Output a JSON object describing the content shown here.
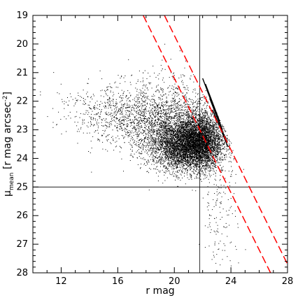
{
  "chart_data": {
    "type": "scatter",
    "title": "",
    "xlabel": "r mag",
    "ylabel": "μ",
    "ylabel_sub": "mean",
    "ylabel_rest": " [r mag arcsec",
    "ylabel_sup": "-2",
    "ylabel_close": "]",
    "xlim": [
      10,
      28
    ],
    "ylim": [
      19,
      28
    ],
    "y_inverted": true,
    "xticks": [
      12,
      16,
      20,
      24,
      28
    ],
    "yticks": [
      19,
      20,
      21,
      22,
      23,
      24,
      25,
      26,
      27,
      28
    ],
    "x_minor_step": 1,
    "y_minor_step": 0.2,
    "grid": false,
    "reference_lines": [
      {
        "orientation": "vertical",
        "x": 21.8
      },
      {
        "orientation": "horizontal",
        "y": 25
      }
    ],
    "dashed_lines": [
      {
        "color": "#ff0000",
        "points": [
          [
            17.8,
            19
          ],
          [
            26.8,
            28
          ]
        ]
      },
      {
        "color": "#ff0000",
        "points": [
          [
            19.3,
            19
          ],
          [
            28.2,
            27.9
          ]
        ]
      }
    ],
    "series": [
      {
        "color": "#000000",
        "marker": "dot",
        "clusters": [
          {
            "center": [
              20.8,
              23.5
            ],
            "spread": [
              1.3,
              0.45
            ],
            "count": 5000
          },
          {
            "center": [
              21.9,
              23.4
            ],
            "spread": [
              0.7,
              0.5
            ],
            "count": 2200
          },
          {
            "center": [
              18.5,
              22.7
            ],
            "spread": [
              2.2,
              0.5
            ],
            "count": 1300
          },
          {
            "center": [
              15.5,
              22.2
            ],
            "spread": [
              1.8,
              0.45
            ],
            "count": 350
          },
          {
            "center": [
              23.3,
              25.8
            ],
            "spread": [
              0.7,
              1.0
            ],
            "count": 160
          },
          {
            "center": [
              20.0,
              22.0
            ],
            "spread": [
              2.0,
              0.6
            ],
            "count": 500
          }
        ],
        "band_lines": [
          {
            "points": [
              [
                22.0,
                21.2
              ],
              [
                23.0,
                22.5
              ]
            ]
          },
          {
            "points": [
              [
                22.2,
                21.4
              ],
              [
                23.2,
                22.7
              ]
            ]
          },
          {
            "points": [
              [
                22.3,
                21.6
              ],
              [
                23.4,
                23.0
              ]
            ]
          },
          {
            "points": [
              [
                22.5,
                21.9
              ],
              [
                23.6,
                23.3
              ]
            ]
          },
          {
            "points": [
              [
                22.7,
                22.3
              ],
              [
                23.8,
                23.6
              ]
            ]
          }
        ]
      }
    ]
  }
}
